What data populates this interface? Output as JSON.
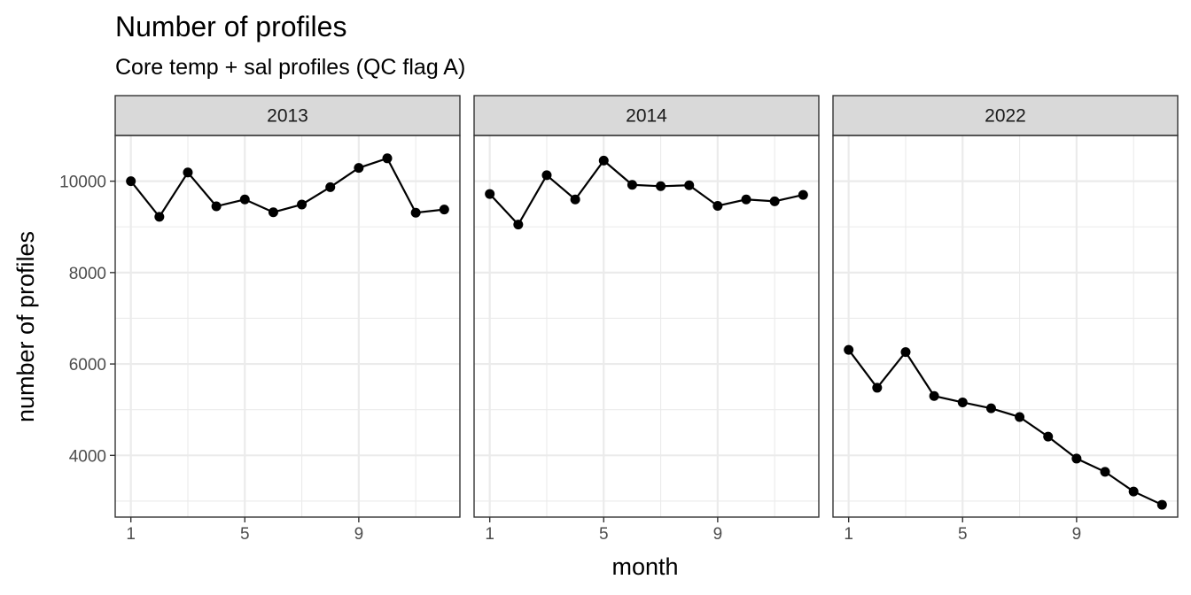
{
  "chart_data": {
    "type": "line",
    "title": "Number of profiles",
    "subtitle": "Core temp + sal profiles (QC flag A)",
    "xlabel": "month",
    "ylabel": "number of profiles",
    "xlim": [
      0.45,
      12.55
    ],
    "ylim": [
      2650,
      11000
    ],
    "x_ticks": [
      1,
      5,
      9
    ],
    "y_ticks": [
      4000,
      6000,
      8000,
      10000
    ],
    "y_minor_ticks": [
      3000,
      5000,
      7000,
      9000,
      11000
    ],
    "x_minor_ticks": [
      3,
      7,
      11
    ],
    "grid": true,
    "legend": "none",
    "panels": [
      {
        "label": "2013",
        "x": [
          1,
          2,
          3,
          4,
          5,
          6,
          7,
          8,
          9,
          10,
          11,
          12
        ],
        "values": [
          10000,
          9220,
          10190,
          9450,
          9600,
          9320,
          9490,
          9870,
          10290,
          10500,
          9310,
          9380
        ]
      },
      {
        "label": "2014",
        "x": [
          1,
          2,
          3,
          4,
          5,
          6,
          7,
          8,
          9,
          10,
          11,
          12
        ],
        "values": [
          9720,
          9050,
          10130,
          9600,
          10450,
          9920,
          9890,
          9910,
          9460,
          9600,
          9560,
          9700
        ]
      },
      {
        "label": "2022",
        "x": [
          1,
          2,
          3,
          4,
          5,
          6,
          7,
          8,
          9,
          10,
          11,
          12
        ],
        "values": [
          6310,
          5480,
          6260,
          5300,
          5160,
          5030,
          4840,
          4410,
          3930,
          3640,
          3210,
          2920
        ]
      }
    ]
  }
}
